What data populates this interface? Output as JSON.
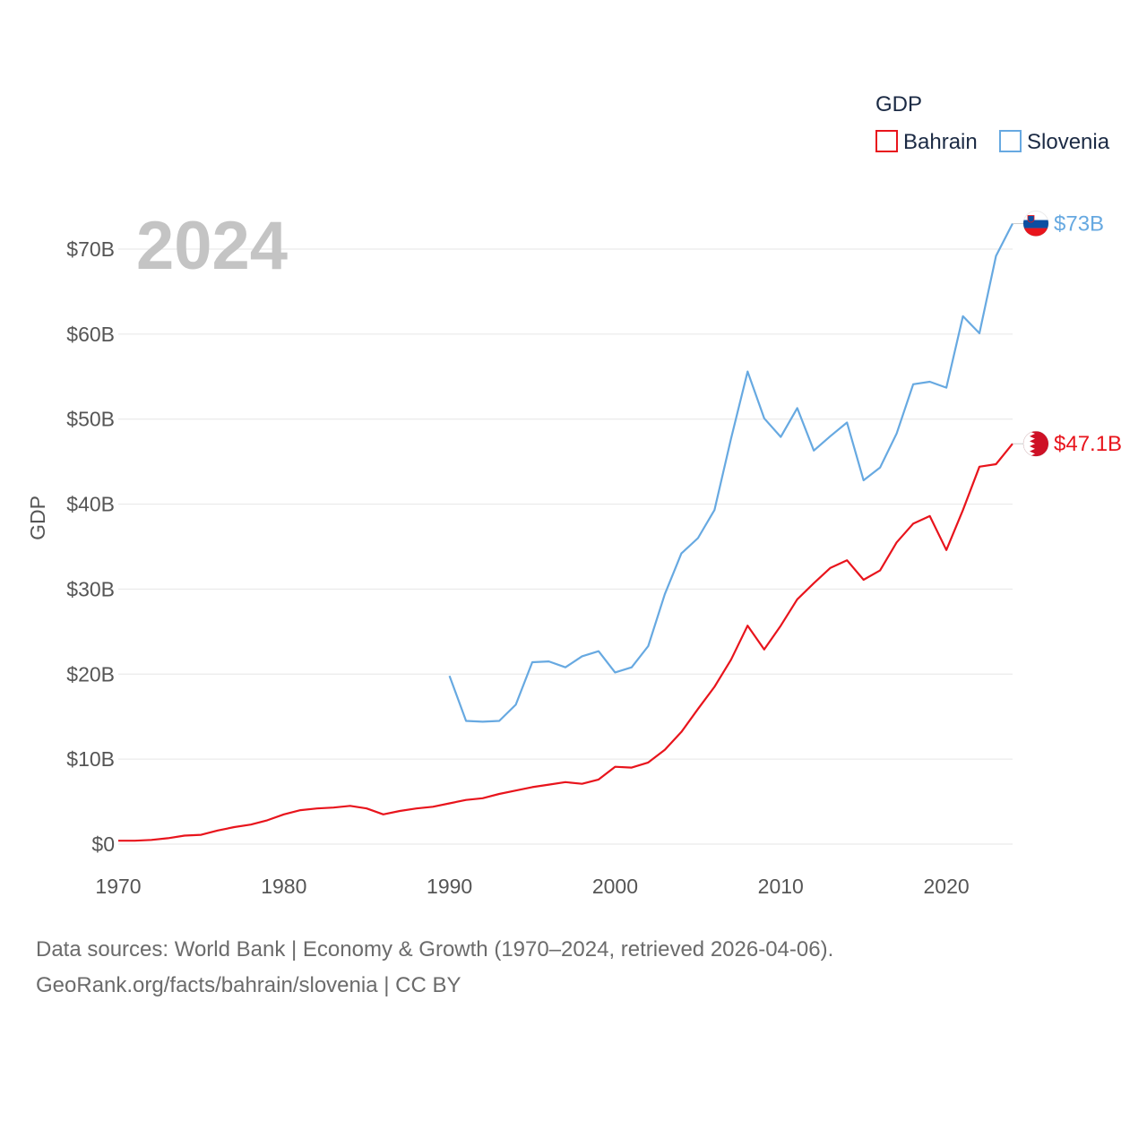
{
  "chart_data": {
    "type": "line",
    "year_label": "2024",
    "ylabel": "GDP",
    "xlim": [
      1970,
      2024
    ],
    "ylim": [
      0,
      70
    ],
    "x_ticks": [
      1970,
      1980,
      1990,
      2000,
      2010,
      2020
    ],
    "y_ticks": [
      {
        "value": 0,
        "label": "$0"
      },
      {
        "value": 10,
        "label": "$10B"
      },
      {
        "value": 20,
        "label": "$20B"
      },
      {
        "value": 30,
        "label": "$30B"
      },
      {
        "value": 40,
        "label": "$40B"
      },
      {
        "value": 50,
        "label": "$50B"
      },
      {
        "value": 60,
        "label": "$60B"
      },
      {
        "value": 70,
        "label": "$70B"
      }
    ],
    "legend": {
      "title": "GDP",
      "position": "top-right"
    },
    "series": [
      {
        "name": "Bahrain",
        "color": "#e8141c",
        "flag": "bahrain-flag",
        "end_label": "$47.1B",
        "x": [
          1970,
          1971,
          1972,
          1973,
          1974,
          1975,
          1976,
          1977,
          1978,
          1979,
          1980,
          1981,
          1982,
          1983,
          1984,
          1985,
          1986,
          1987,
          1988,
          1989,
          1990,
          1991,
          1992,
          1993,
          1994,
          1995,
          1996,
          1997,
          1998,
          1999,
          2000,
          2001,
          2002,
          2003,
          2004,
          2005,
          2006,
          2007,
          2008,
          2009,
          2010,
          2011,
          2012,
          2013,
          2014,
          2015,
          2016,
          2017,
          2018,
          2019,
          2020,
          2021,
          2022,
          2023,
          2024
        ],
        "values": [
          0.4,
          0.4,
          0.5,
          0.7,
          1.0,
          1.1,
          1.6,
          2.0,
          2.3,
          2.8,
          3.5,
          4.0,
          4.2,
          4.3,
          4.5,
          4.2,
          3.5,
          3.9,
          4.2,
          4.4,
          4.8,
          5.2,
          5.4,
          5.9,
          6.3,
          6.7,
          7.0,
          7.3,
          7.1,
          7.6,
          9.1,
          9.0,
          9.6,
          11.1,
          13.2,
          15.9,
          18.5,
          21.7,
          25.7,
          22.9,
          25.7,
          28.8,
          30.7,
          32.5,
          33.4,
          31.1,
          32.2,
          35.5,
          37.7,
          38.6,
          34.6,
          39.3,
          44.4,
          44.7,
          47.1
        ]
      },
      {
        "name": "Slovenia",
        "color": "#67a9e1",
        "flag": "slovenia-flag",
        "end_label": "$73B",
        "x": [
          1990,
          1991,
          1992,
          1993,
          1994,
          1995,
          1996,
          1997,
          1998,
          1999,
          2000,
          2001,
          2002,
          2003,
          2004,
          2005,
          2006,
          2007,
          2008,
          2009,
          2010,
          2011,
          2012,
          2013,
          2014,
          2015,
          2016,
          2017,
          2018,
          2019,
          2020,
          2021,
          2022,
          2023,
          2024
        ],
        "values": [
          19.8,
          14.5,
          14.4,
          14.5,
          16.4,
          21.4,
          21.5,
          20.8,
          22.1,
          22.7,
          20.2,
          20.8,
          23.3,
          29.4,
          34.2,
          36.0,
          39.3,
          47.7,
          55.6,
          50.1,
          47.9,
          51.3,
          46.3,
          48.0,
          49.6,
          42.8,
          44.3,
          48.3,
          54.1,
          54.4,
          53.7,
          62.1,
          60.1,
          69.2,
          73.0
        ]
      }
    ]
  },
  "footer": {
    "line1": "Data sources: World Bank | Economy & Growth (1970–2024, retrieved 2026-04-06).",
    "line2": "GeoRank.org/facts/bahrain/slovenia | CC BY"
  }
}
